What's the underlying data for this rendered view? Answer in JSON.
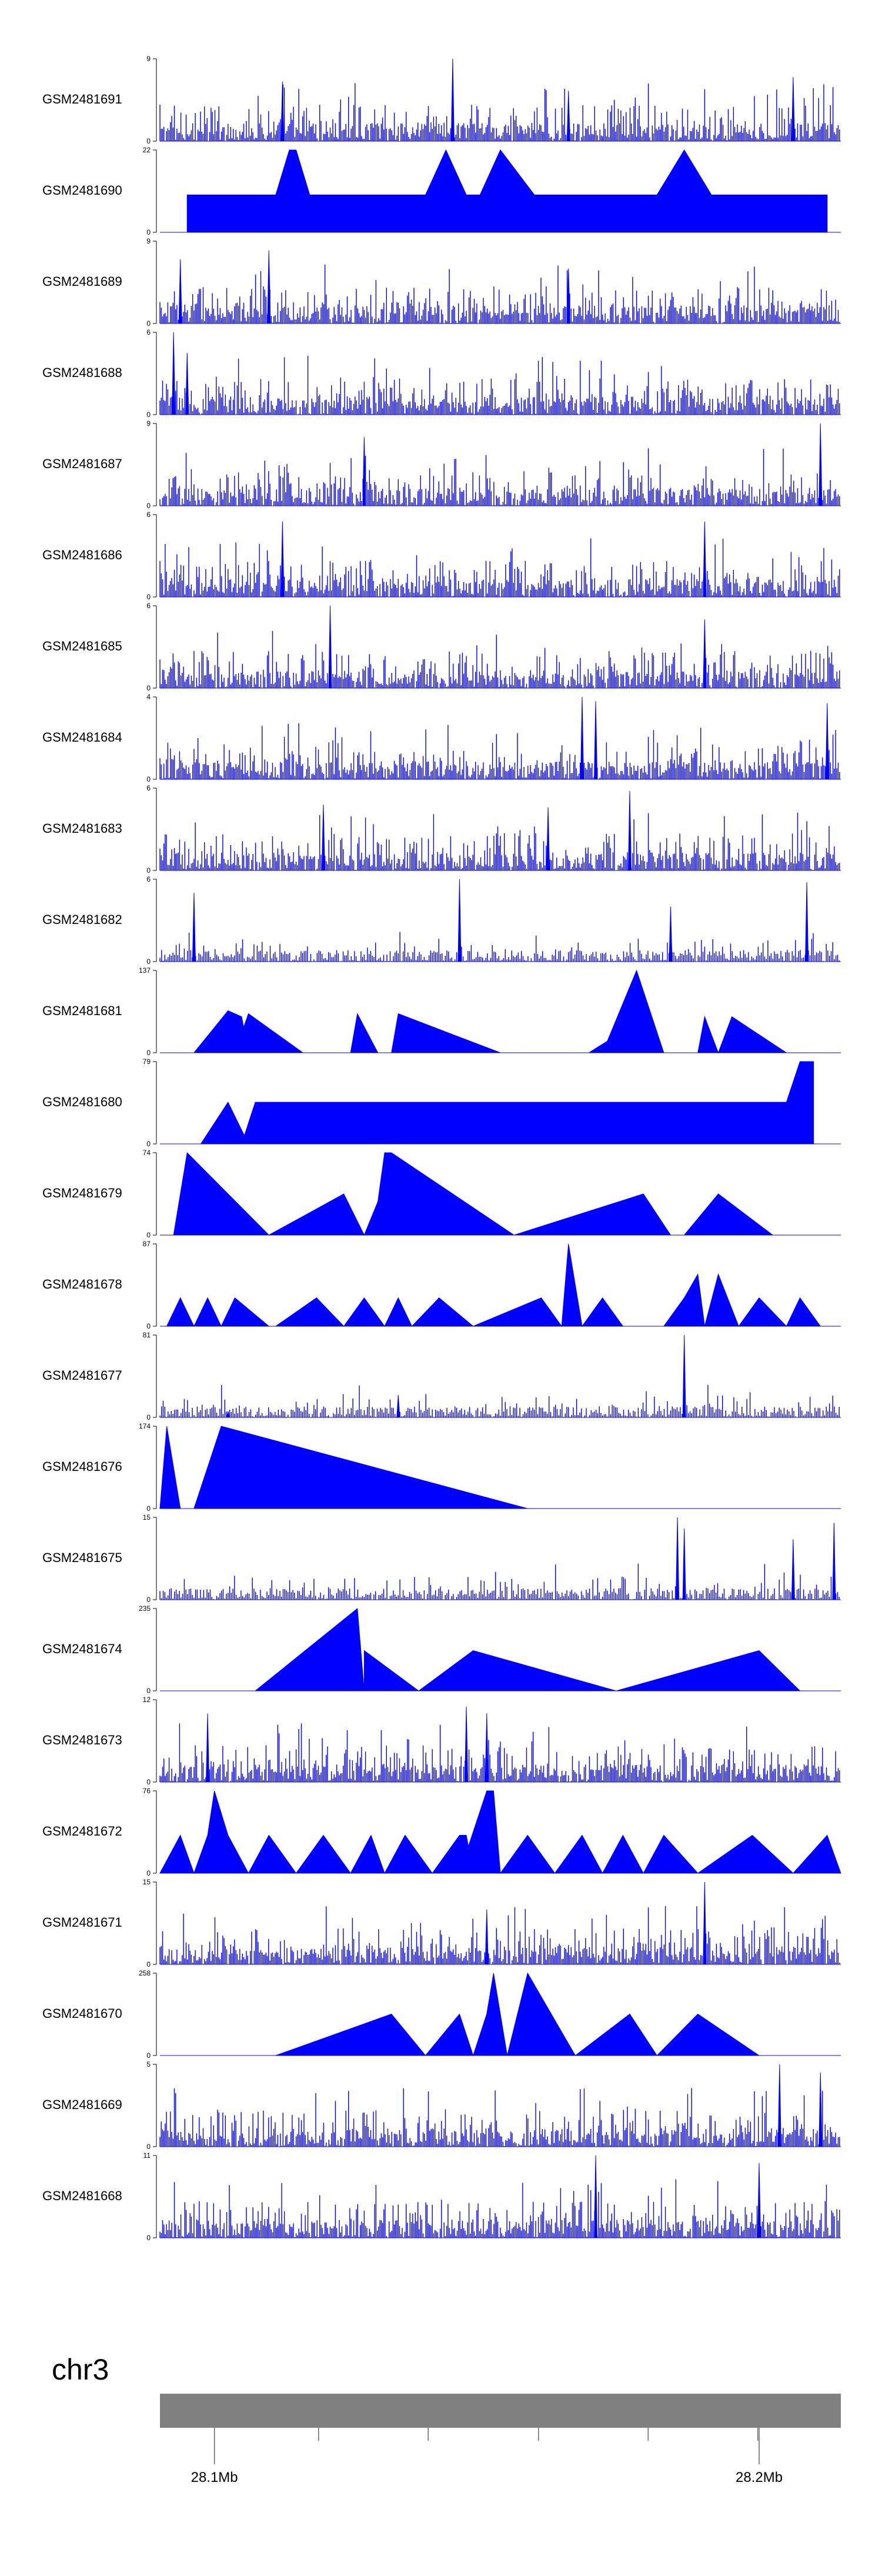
{
  "chart_data": {
    "type": "area",
    "title": "",
    "chromosome": "chr3",
    "colors": {
      "signal": "#0000FF",
      "ideogram": "#808080",
      "axis": "#000000"
    },
    "x_range_mb": [
      28.09,
      28.215
    ],
    "x_tick_labels": [
      "28.1Mb",
      "28.2Mb"
    ],
    "x_tick_values_mb": [
      28.1,
      28.2
    ],
    "tracks": [
      {
        "name": "GSM2481691",
        "ymax": 9,
        "ymin_label": "0",
        "ymax_label": "9",
        "style": "dense",
        "spikes": [
          [
            0.43,
            9
          ],
          [
            0.18,
            6.5
          ],
          [
            0.6,
            5.5
          ],
          [
            0.93,
            7
          ]
        ]
      },
      {
        "name": "GSM2481690",
        "ymax": 22,
        "ymin_label": "0",
        "ymax_label": "22",
        "style": "triangles",
        "peaks": [
          [
            0.04,
            10
          ],
          [
            0.07,
            10
          ],
          [
            0.1,
            10
          ],
          [
            0.12,
            10
          ],
          [
            0.14,
            10
          ],
          [
            0.16,
            10
          ],
          [
            0.17,
            10
          ],
          [
            0.19,
            22
          ],
          [
            0.2,
            22
          ],
          [
            0.22,
            10
          ],
          [
            0.24,
            10
          ],
          [
            0.26,
            10
          ],
          [
            0.28,
            10
          ],
          [
            0.31,
            10
          ],
          [
            0.39,
            10
          ],
          [
            0.42,
            22
          ],
          [
            0.45,
            10
          ],
          [
            0.47,
            10
          ],
          [
            0.5,
            22
          ],
          [
            0.55,
            10
          ],
          [
            0.62,
            10
          ],
          [
            0.73,
            10
          ],
          [
            0.77,
            22
          ],
          [
            0.81,
            10
          ],
          [
            0.86,
            10
          ],
          [
            0.89,
            10
          ],
          [
            0.92,
            10
          ],
          [
            0.95,
            10
          ],
          [
            0.98,
            10
          ]
        ]
      },
      {
        "name": "GSM2481689",
        "ymax": 9,
        "ymin_label": "0",
        "ymax_label": "9",
        "style": "dense",
        "spikes": [
          [
            0.03,
            7
          ],
          [
            0.16,
            8
          ],
          [
            0.6,
            6
          ]
        ]
      },
      {
        "name": "GSM2481688",
        "ymax": 6,
        "ymin_label": "0",
        "ymax_label": "6",
        "style": "dense",
        "spikes": [
          [
            0.02,
            6
          ],
          [
            0.04,
            4.5
          ]
        ]
      },
      {
        "name": "GSM2481687",
        "ymax": 9,
        "ymin_label": "0",
        "ymax_label": "9",
        "style": "dense",
        "spikes": [
          [
            0.97,
            9
          ],
          [
            0.3,
            7.5
          ]
        ]
      },
      {
        "name": "GSM2481686",
        "ymax": 6,
        "ymin_label": "0",
        "ymax_label": "6",
        "style": "dense",
        "spikes": [
          [
            0.18,
            5.5
          ],
          [
            0.8,
            5.5
          ]
        ]
      },
      {
        "name": "GSM2481685",
        "ymax": 6,
        "ymin_label": "0",
        "ymax_label": "6",
        "style": "dense",
        "spikes": [
          [
            0.25,
            6
          ],
          [
            0.8,
            5
          ]
        ]
      },
      {
        "name": "GSM2481684",
        "ymax": 4,
        "ymin_label": "0",
        "ymax_label": "4",
        "style": "dense",
        "spikes": [
          [
            0.62,
            4
          ],
          [
            0.64,
            3.8
          ],
          [
            0.98,
            3.7
          ]
        ]
      },
      {
        "name": "GSM2481683",
        "ymax": 6,
        "ymin_label": "0",
        "ymax_label": "6",
        "style": "dense",
        "spikes": [
          [
            0.69,
            5.8
          ],
          [
            0.24,
            4.8
          ],
          [
            0.57,
            4.6
          ]
        ]
      },
      {
        "name": "GSM2481682",
        "ymax": 6,
        "ymin_label": "0",
        "ymax_label": "6",
        "style": "sparse",
        "spikes": [
          [
            0.44,
            6
          ],
          [
            0.95,
            5.8
          ],
          [
            0.05,
            5
          ],
          [
            0.75,
            4
          ]
        ]
      },
      {
        "name": "GSM2481681",
        "ymax": 137,
        "ymin_label": "0",
        "ymax_label": "137",
        "style": "triangles",
        "peaks": [
          [
            0.05,
            0
          ],
          [
            0.1,
            70
          ],
          [
            0.12,
            60
          ],
          [
            0.13,
            0
          ],
          [
            0.11,
            0
          ],
          [
            0.13,
            65
          ],
          [
            0.21,
            0
          ],
          [
            0.28,
            0
          ],
          [
            0.29,
            65
          ],
          [
            0.32,
            0
          ],
          [
            0.34,
            0
          ],
          [
            0.35,
            65
          ],
          [
            0.5,
            0
          ],
          [
            0.63,
            0
          ],
          [
            0.7,
            50
          ],
          [
            0.65,
            0
          ],
          [
            0.7,
            137
          ],
          [
            0.74,
            0
          ],
          [
            0.79,
            0
          ],
          [
            0.8,
            60
          ],
          [
            0.82,
            0
          ],
          [
            0.82,
            0
          ],
          [
            0.84,
            60
          ],
          [
            0.92,
            0
          ]
        ]
      },
      {
        "name": "GSM2481680",
        "ymax": 79,
        "ymin_label": "0",
        "ymax_label": "79",
        "style": "triangles",
        "peaks": [
          [
            0.06,
            0
          ],
          [
            0.1,
            40
          ],
          [
            0.13,
            0
          ],
          [
            0.12,
            0
          ],
          [
            0.14,
            40
          ],
          [
            0.18,
            40
          ],
          [
            0.23,
            40
          ],
          [
            0.28,
            40
          ],
          [
            0.33,
            40
          ],
          [
            0.37,
            40
          ],
          [
            0.43,
            40
          ],
          [
            0.47,
            40
          ],
          [
            0.52,
            40
          ],
          [
            0.57,
            40
          ],
          [
            0.62,
            40
          ],
          [
            0.68,
            40
          ],
          [
            0.74,
            40
          ],
          [
            0.78,
            40
          ],
          [
            0.81,
            40
          ],
          [
            0.88,
            40
          ],
          [
            0.92,
            40
          ],
          [
            0.94,
            79
          ],
          [
            0.96,
            79
          ]
        ]
      },
      {
        "name": "GSM2481679",
        "ymax": 74,
        "ymin_label": "0",
        "ymax_label": "74",
        "style": "triangles",
        "peaks": [
          [
            0.02,
            0
          ],
          [
            0.04,
            74
          ],
          [
            0.16,
            0
          ],
          [
            0.16,
            0
          ],
          [
            0.27,
            37
          ],
          [
            0.3,
            0
          ],
          [
            0.3,
            0
          ],
          [
            0.32,
            30
          ],
          [
            0.33,
            74
          ],
          [
            0.34,
            74
          ],
          [
            0.52,
            0
          ],
          [
            0.52,
            0
          ],
          [
            0.71,
            37
          ],
          [
            0.75,
            0
          ],
          [
            0.77,
            0
          ],
          [
            0.82,
            37
          ],
          [
            0.9,
            0
          ]
        ]
      },
      {
        "name": "GSM2481678",
        "ymax": 87,
        "ymin_label": "0",
        "ymax_label": "87",
        "style": "triangles",
        "peaks": [
          [
            0.01,
            0
          ],
          [
            0.03,
            30
          ],
          [
            0.05,
            0
          ],
          [
            0.05,
            0
          ],
          [
            0.07,
            30
          ],
          [
            0.09,
            0
          ],
          [
            0.09,
            0
          ],
          [
            0.11,
            30
          ],
          [
            0.16,
            0
          ],
          [
            0.17,
            0
          ],
          [
            0.23,
            30
          ],
          [
            0.27,
            0
          ],
          [
            0.27,
            0
          ],
          [
            0.3,
            30
          ],
          [
            0.33,
            0
          ],
          [
            0.33,
            0
          ],
          [
            0.35,
            30
          ],
          [
            0.37,
            0
          ],
          [
            0.37,
            0
          ],
          [
            0.41,
            30
          ],
          [
            0.46,
            0
          ],
          [
            0.46,
            0
          ],
          [
            0.56,
            30
          ],
          [
            0.59,
            0
          ],
          [
            0.59,
            0
          ],
          [
            0.6,
            87
          ],
          [
            0.62,
            0
          ],
          [
            0.62,
            0
          ],
          [
            0.65,
            30
          ],
          [
            0.68,
            0
          ],
          [
            0.74,
            0
          ],
          [
            0.77,
            30
          ],
          [
            0.79,
            55
          ],
          [
            0.8,
            0
          ],
          [
            0.8,
            0
          ],
          [
            0.82,
            55
          ],
          [
            0.85,
            0
          ],
          [
            0.85,
            0
          ],
          [
            0.88,
            30
          ],
          [
            0.92,
            0
          ],
          [
            0.92,
            0
          ],
          [
            0.94,
            30
          ],
          [
            0.97,
            0
          ]
        ]
      },
      {
        "name": "GSM2481677",
        "ymax": 81,
        "ymin_label": "0",
        "ymax_label": "81",
        "style": "sparse",
        "spikes": [
          [
            0.77,
            81
          ],
          [
            0.35,
            22
          ],
          [
            0.1,
            6
          ]
        ]
      },
      {
        "name": "GSM2481676",
        "ymax": 174,
        "ymin_label": "0",
        "ymax_label": "174",
        "style": "triangles",
        "peaks": [
          [
            0.0,
            0
          ],
          [
            0.01,
            174
          ],
          [
            0.03,
            0
          ],
          [
            0.03,
            0
          ],
          [
            0.05,
            0
          ],
          [
            0.09,
            174
          ],
          [
            0.54,
            0
          ]
        ]
      },
      {
        "name": "GSM2481675",
        "ymax": 15,
        "ymin_label": "0",
        "ymax_label": "15",
        "style": "sparse",
        "spikes": [
          [
            0.76,
            15
          ],
          [
            0.77,
            13
          ],
          [
            0.93,
            11
          ],
          [
            0.99,
            14
          ]
        ]
      },
      {
        "name": "GSM2481674",
        "ymax": 235,
        "ymin_label": "0",
        "ymax_label": "235",
        "style": "triangles",
        "peaks": [
          [
            0.14,
            0
          ],
          [
            0.29,
            235
          ],
          [
            0.3,
            0
          ],
          [
            0.3,
            115
          ],
          [
            0.38,
            0
          ],
          [
            0.38,
            0
          ],
          [
            0.46,
            115
          ],
          [
            0.67,
            0
          ],
          [
            0.67,
            0
          ],
          [
            0.88,
            115
          ],
          [
            0.94,
            0
          ]
        ]
      },
      {
        "name": "GSM2481673",
        "ymax": 12,
        "ymin_label": "0",
        "ymax_label": "12",
        "style": "dense",
        "spikes": [
          [
            0.07,
            10
          ],
          [
            0.45,
            11
          ],
          [
            0.48,
            10
          ]
        ]
      },
      {
        "name": "GSM2481672",
        "ymax": 76,
        "ymin_label": "0",
        "ymax_label": "76",
        "style": "triangles",
        "peaks": [
          [
            0.0,
            0
          ],
          [
            0.03,
            35
          ],
          [
            0.05,
            0
          ],
          [
            0.05,
            0
          ],
          [
            0.07,
            35
          ],
          [
            0.08,
            76
          ],
          [
            0.1,
            35
          ],
          [
            0.13,
            0
          ],
          [
            0.13,
            0
          ],
          [
            0.16,
            35
          ],
          [
            0.2,
            0
          ],
          [
            0.2,
            0
          ],
          [
            0.24,
            35
          ],
          [
            0.28,
            0
          ],
          [
            0.28,
            0
          ],
          [
            0.31,
            35
          ],
          [
            0.33,
            0
          ],
          [
            0.33,
            0
          ],
          [
            0.36,
            35
          ],
          [
            0.4,
            0
          ],
          [
            0.4,
            0
          ],
          [
            0.44,
            35
          ],
          [
            0.45,
            35
          ],
          [
            0.46,
            0
          ],
          [
            0.44,
            0
          ],
          [
            0.48,
            76
          ],
          [
            0.49,
            76
          ],
          [
            0.5,
            0
          ],
          [
            0.5,
            0
          ],
          [
            0.54,
            35
          ],
          [
            0.58,
            0
          ],
          [
            0.58,
            0
          ],
          [
            0.62,
            35
          ],
          [
            0.65,
            0
          ],
          [
            0.65,
            0
          ],
          [
            0.68,
            35
          ],
          [
            0.71,
            0
          ],
          [
            0.71,
            0
          ],
          [
            0.74,
            35
          ],
          [
            0.79,
            0
          ],
          [
            0.79,
            0
          ],
          [
            0.87,
            35
          ],
          [
            0.93,
            0
          ],
          [
            0.93,
            0
          ],
          [
            0.98,
            35
          ],
          [
            1.0,
            0
          ]
        ]
      },
      {
        "name": "GSM2481671",
        "ymax": 15,
        "ymin_label": "0",
        "ymax_label": "15",
        "style": "dense",
        "spikes": [
          [
            0.8,
            15
          ],
          [
            0.48,
            10
          ]
        ]
      },
      {
        "name": "GSM2481670",
        "ymax": 258,
        "ymin_label": "0",
        "ymax_label": "258",
        "style": "triangles",
        "peaks": [
          [
            0.17,
            0
          ],
          [
            0.34,
            130
          ],
          [
            0.39,
            0
          ],
          [
            0.39,
            0
          ],
          [
            0.44,
            130
          ],
          [
            0.46,
            0
          ],
          [
            0.46,
            0
          ],
          [
            0.48,
            130
          ],
          [
            0.49,
            258
          ],
          [
            0.51,
            0
          ],
          [
            0.51,
            0
          ],
          [
            0.54,
            258
          ],
          [
            0.61,
            0
          ],
          [
            0.61,
            0
          ],
          [
            0.69,
            130
          ],
          [
            0.73,
            0
          ],
          [
            0.73,
            0
          ],
          [
            0.79,
            130
          ],
          [
            0.88,
            0
          ]
        ]
      },
      {
        "name": "GSM2481669",
        "ymax": 5,
        "ymin_label": "0",
        "ymax_label": "5",
        "style": "dense",
        "spikes": [
          [
            0.91,
            5
          ],
          [
            0.97,
            4.5
          ]
        ]
      },
      {
        "name": "GSM2481668",
        "ymax": 11,
        "ymin_label": "0",
        "ymax_label": "11",
        "style": "dense",
        "spikes": [
          [
            0.64,
            11
          ],
          [
            0.88,
            10
          ]
        ]
      }
    ]
  }
}
